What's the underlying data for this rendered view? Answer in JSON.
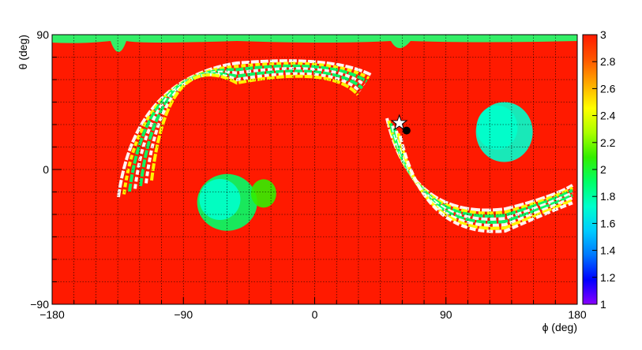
{
  "chart_data": {
    "type": "heatmap",
    "xlabel": "ϕ (deg)",
    "ylabel": "θ (deg)",
    "xlim": [
      -180,
      180
    ],
    "ylim": [
      -90,
      90
    ],
    "x_ticks": [
      {
        "value": -180,
        "label": "−180"
      },
      {
        "value": -90,
        "label": "−90"
      },
      {
        "value": 0,
        "label": "0"
      },
      {
        "value": 90,
        "label": "90"
      },
      {
        "value": 180,
        "label": "180"
      }
    ],
    "y_ticks": [
      {
        "value": 90,
        "label": "90"
      },
      {
        "value": 0,
        "label": "0"
      },
      {
        "value": -90,
        "label": "−90"
      }
    ],
    "grid": true,
    "colorbar": {
      "range": [
        1,
        3
      ],
      "ticks": [
        {
          "value": 3,
          "label": "3"
        },
        {
          "value": 2.8,
          "label": "2.8"
        },
        {
          "value": 2.6,
          "label": "2.6"
        },
        {
          "value": 2.4,
          "label": "2.4"
        },
        {
          "value": 2.2,
          "label": "2.2"
        },
        {
          "value": 2,
          "label": "2"
        },
        {
          "value": 1.8,
          "label": "1.8"
        },
        {
          "value": 1.6,
          "label": "1.6"
        },
        {
          "value": 1.4,
          "label": "1.4"
        },
        {
          "value": 1.2,
          "label": "1.2"
        },
        {
          "value": 1,
          "label": "1"
        }
      ],
      "colors": [
        "#8800ff",
        "#0000ff",
        "#0077ff",
        "#00ccff",
        "#00ffcc",
        "#00ff66",
        "#33ee00",
        "#aaff00",
        "#ffff00",
        "#ffaa00",
        "#ff5500",
        "#ff1a00"
      ]
    },
    "background_value": 3,
    "blobs": [
      {
        "phi": -60,
        "theta": -22,
        "value": 1.85
      },
      {
        "phi": -65,
        "theta": -20,
        "value": 1.75
      },
      {
        "phi": 130,
        "theta": 25,
        "value": 1.8
      },
      {
        "phi": 125,
        "theta": 28,
        "value": 1.65
      },
      {
        "phi": -35,
        "theta": -16,
        "value": 2.1
      }
    ],
    "markers": [
      {
        "type": "star",
        "phi": 58,
        "theta": 31
      },
      {
        "type": "dot",
        "phi": 63,
        "theta": 26
      }
    ]
  }
}
